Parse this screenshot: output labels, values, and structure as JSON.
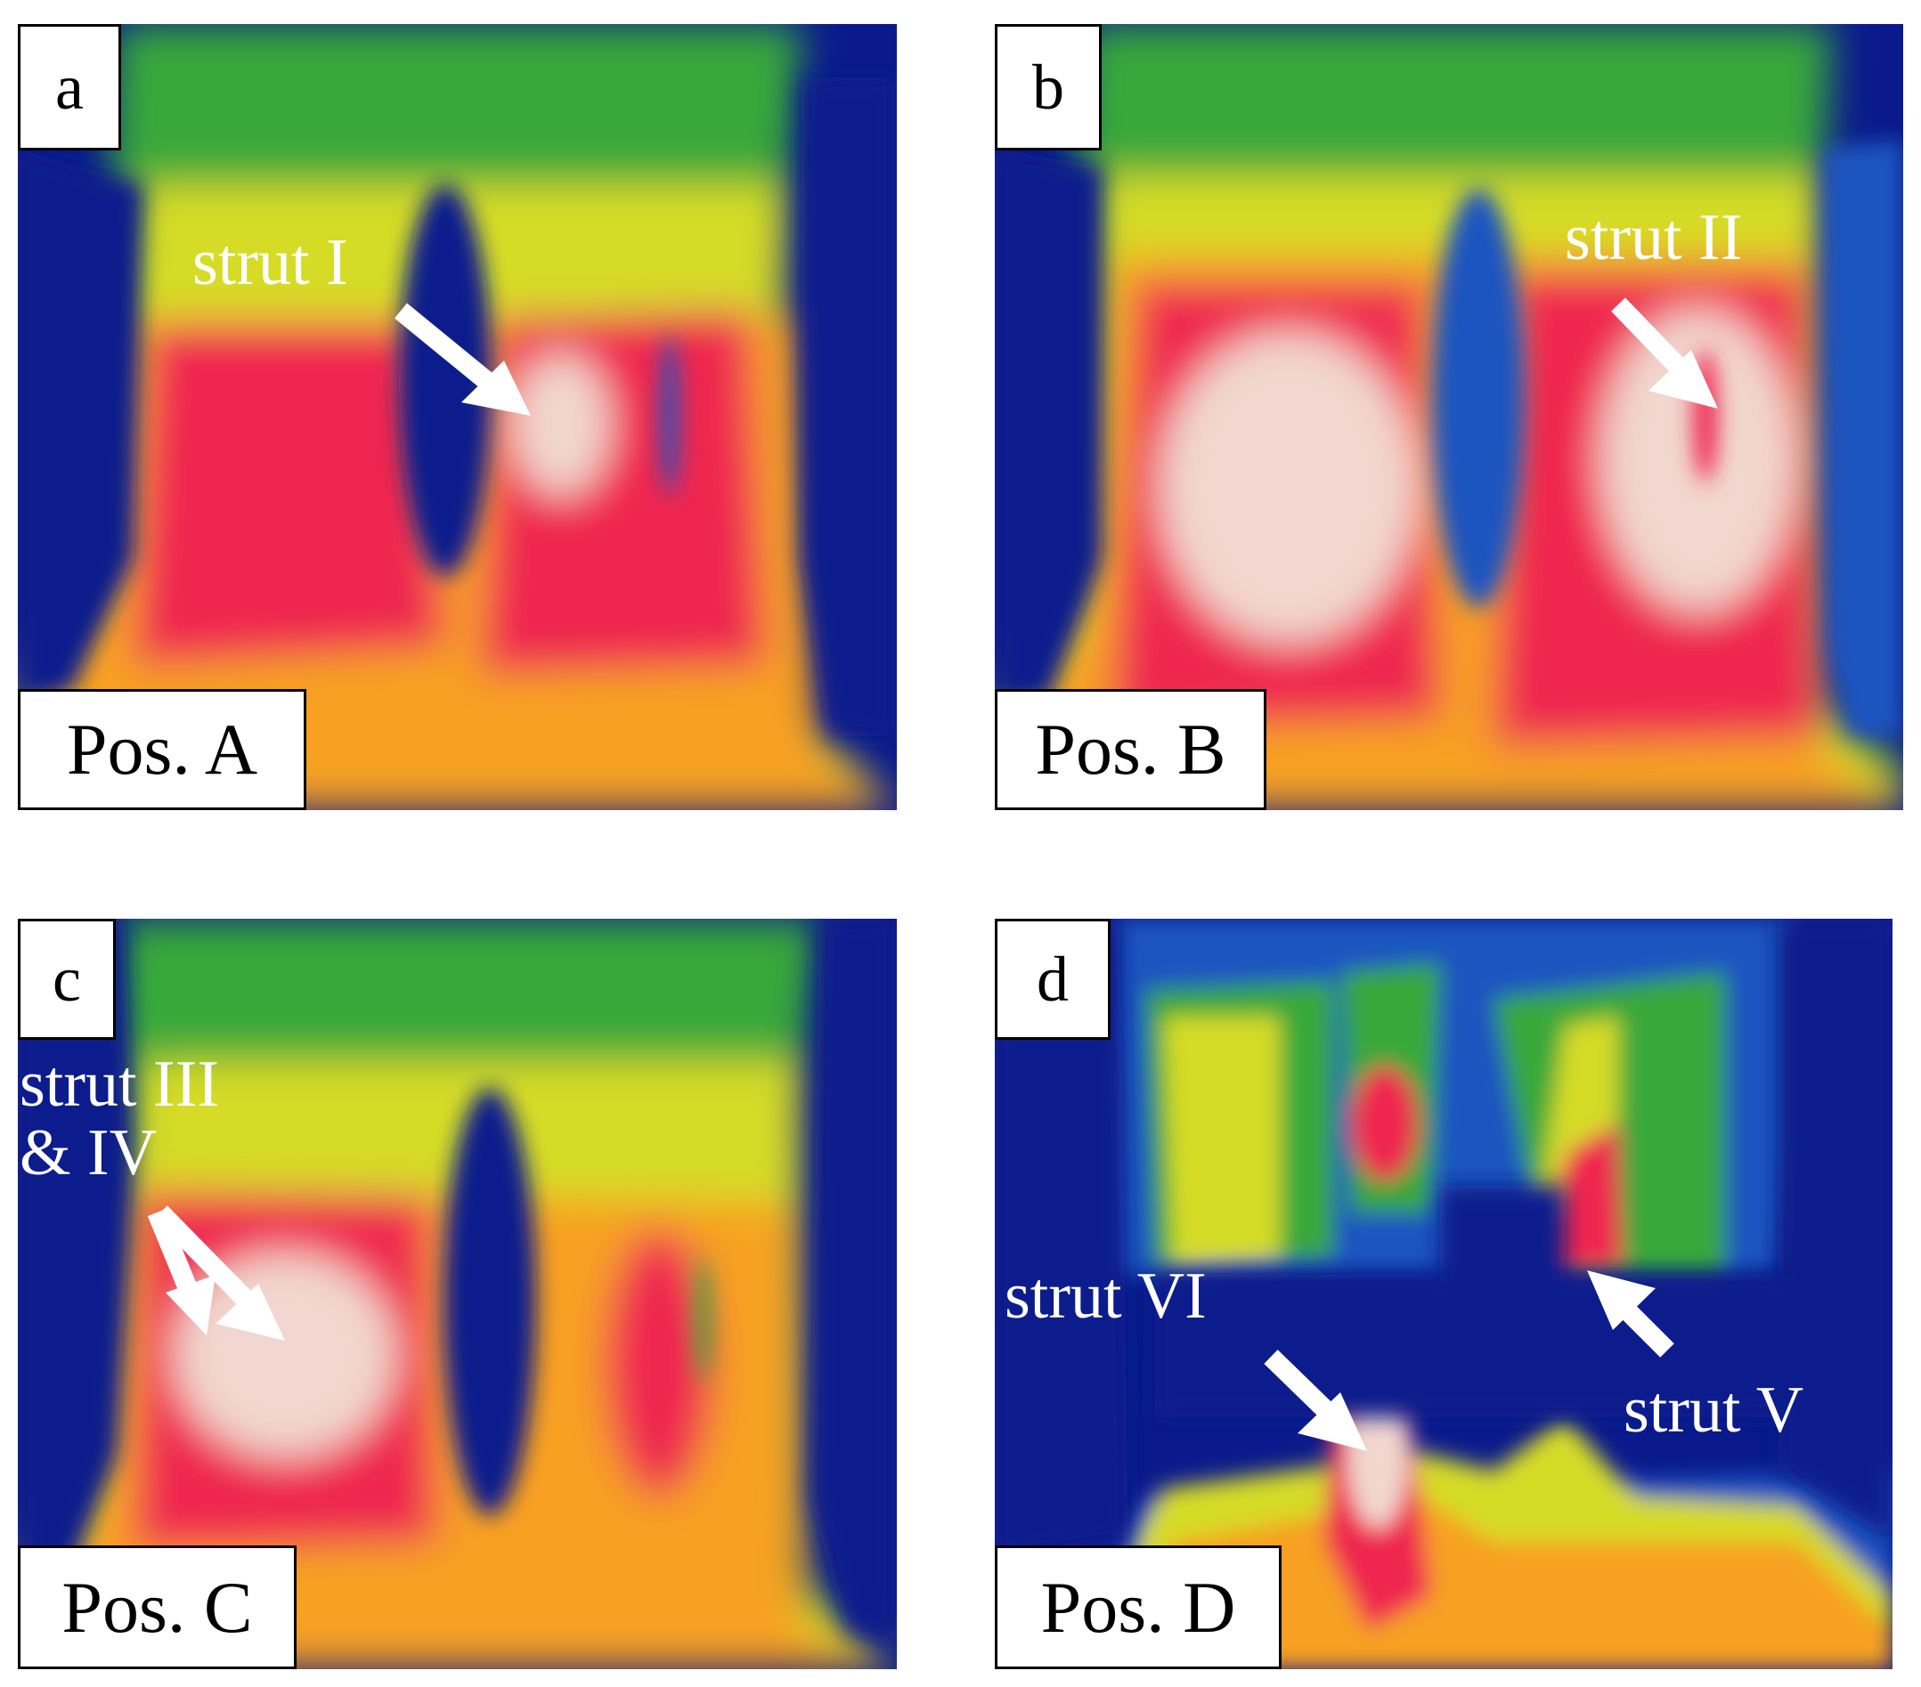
{
  "colors": {
    "background": "#ffffff",
    "frame": "#000000",
    "cold": "#0a1a8c",
    "cool": "#1a55c0",
    "green": "#38a83a",
    "yellow": "#d6dc28",
    "orange": "#f7a024",
    "red": "#ef2650",
    "hot": "#f1d7cf",
    "arrow": "#ffffff"
  },
  "panels": [
    {
      "letter": "a",
      "position_label": "Pos. A",
      "annotations": [
        "strut I"
      ]
    },
    {
      "letter": "b",
      "position_label": "Pos. B",
      "annotations": [
        "strut II"
      ]
    },
    {
      "letter": "c",
      "position_label": "Pos. C",
      "annotations": [
        "strut III",
        "& IV"
      ]
    },
    {
      "letter": "d",
      "position_label": "Pos. D",
      "annotations": [
        "strut VI",
        "strut V"
      ]
    }
  ]
}
